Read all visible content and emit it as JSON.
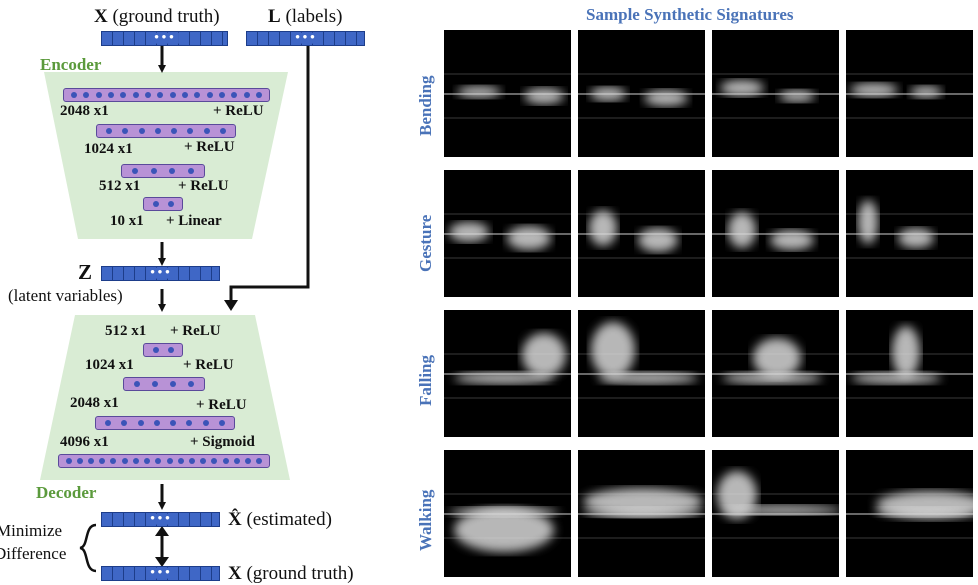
{
  "encoder": {
    "title": "Encoder",
    "input_x_symbol": "X",
    "input_x_text": "(ground truth)",
    "input_l_symbol": "L",
    "input_l_text": "(labels)",
    "layers": [
      {
        "size": "2048 x1",
        "act": "+ ReLU"
      },
      {
        "size": "1024 x1",
        "act": "+ ReLU"
      },
      {
        "size": "512 x1",
        "act": "+ ReLU"
      },
      {
        "size": "10 x1",
        "act": "+ Linear"
      }
    ]
  },
  "latent": {
    "symbol": "Z",
    "text": "(latent variables)"
  },
  "decoder": {
    "title": "Decoder",
    "layers": [
      {
        "size": "512 x1",
        "act": "+ ReLU"
      },
      {
        "size": "1024 x1",
        "act": "+ ReLU"
      },
      {
        "size": "2048 x1",
        "act": "+ ReLU"
      },
      {
        "size": "4096 x1",
        "act": "+ Sigmoid"
      }
    ]
  },
  "outputs": {
    "xhat_symbol": "X̂",
    "xhat_text": "(estimated)",
    "x_symbol": "X",
    "x_text": "(ground truth)",
    "minimize_line1": "Minimize",
    "minimize_line2": "Difference",
    "vector_dots": "•••"
  },
  "signatures": {
    "title": "Sample Synthetic Signatures",
    "rows": [
      "Bending",
      "Gesture",
      "Falling",
      "Walking"
    ]
  },
  "colors": {
    "vector_blue": "#3f67c6",
    "layer_purple": "#b892d6",
    "trapezoid_green": "#d9ecd4",
    "title_green": "#5b9a3c",
    "label_blue": "#4a73b8"
  }
}
